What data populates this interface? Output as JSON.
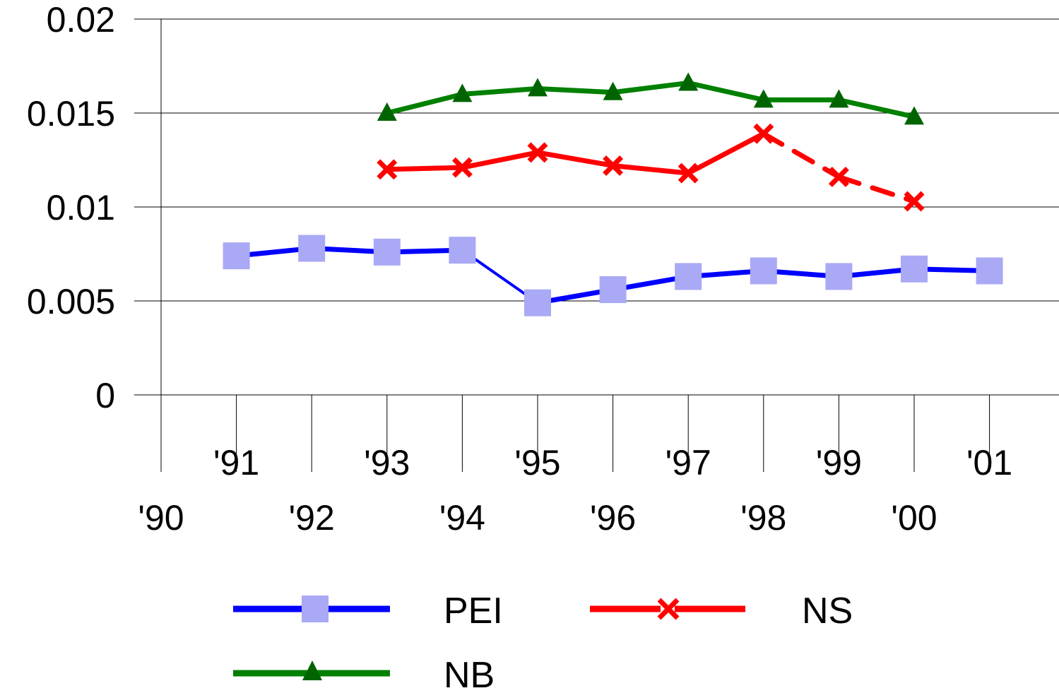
{
  "chart_data": {
    "type": "line",
    "title": "",
    "xlabel": "",
    "ylabel": "",
    "categories": [
      "'90",
      "'91",
      "'92",
      "'93",
      "'94",
      "'95",
      "'96",
      "'97",
      "'98",
      "'99",
      "'00",
      "'01"
    ],
    "ylim": [
      0,
      0.02
    ],
    "yticks": [
      "0",
      "0.005",
      "0.01",
      "0.015",
      "0.02"
    ],
    "grid": "horizontal",
    "legend_placement": "bottom",
    "series": [
      {
        "name": "PEI",
        "line_color": "#0000FF",
        "marker": "square",
        "marker_color": "#A9A9F5",
        "values": [
          null,
          0.0074,
          0.0078,
          0.0076,
          0.0077,
          0.0049,
          0.0056,
          0.0063,
          0.0066,
          0.0063,
          0.0067,
          0.0066
        ]
      },
      {
        "name": "NS",
        "line_color": "#FF0000",
        "marker": "x",
        "marker_color": "#FF0000",
        "values": [
          null,
          null,
          null,
          0.012,
          0.0121,
          0.0129,
          0.0122,
          0.0118,
          0.0139,
          0.0116,
          0.0103,
          null
        ]
      },
      {
        "name": "NB",
        "line_color": "#008000",
        "marker": "triangle",
        "marker_color": "#006400",
        "values": [
          null,
          null,
          null,
          0.015,
          0.016,
          0.0163,
          0.0161,
          0.0166,
          0.0157,
          0.0157,
          0.0148,
          null
        ]
      }
    ]
  }
}
